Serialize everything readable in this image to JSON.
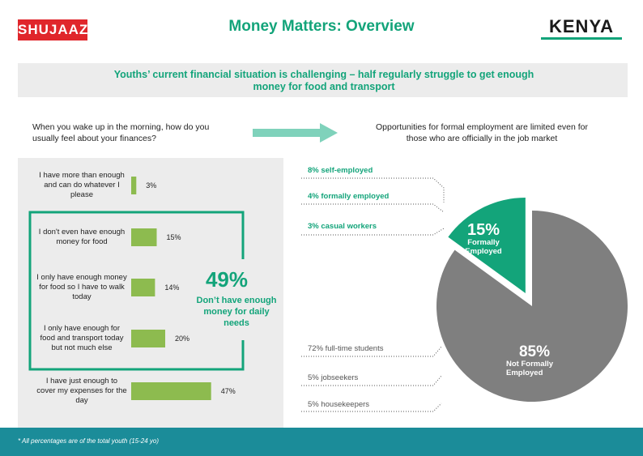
{
  "header": {
    "logo_left": "SHUJAAZ",
    "title": "Money Matters: Overview",
    "logo_right": "KENYA"
  },
  "banner": "Youths’ current financial situation is challenging – half regularly struggle to get enough money for food and transport",
  "chart_data": [
    {
      "type": "bar",
      "title": "When you wake up in the morning, how do you usually feel about your finances?",
      "categories": [
        "I have more than enough and can do whatever I please",
        "I don't even have enough money for food",
        "I only have enough money for food so I have to walk today",
        "I only have enough for food and transport today but not much else",
        "I have just enough to cover my expenses for the day"
      ],
      "values": [
        3,
        15,
        14,
        20,
        47
      ],
      "value_labels": [
        "3%",
        "15%",
        "14%",
        "20%",
        "47%"
      ],
      "color": "#8dbb4f",
      "annotations": [
        "49%",
        "Don’t have enough money for daily needs"
      ]
    },
    {
      "type": "pie",
      "title": "Opportunities for formal employment are limited even for those who are officially in the job market",
      "categories": [
        "Not Formally Employed",
        "Formally Employed"
      ],
      "values": [
        85,
        15
      ],
      "value_labels": [
        "85%",
        "15%"
      ],
      "colors": [
        "#7f7f7f",
        "#13a47a"
      ],
      "callouts": [
        "8% self-employed",
        "4% formally employed",
        "3% casual workers",
        "72% full-time students",
        "5% jobseekers",
        "5% housekeepers"
      ]
    }
  ],
  "footer": "* All percentages are of the total youth (15-24 yo)"
}
